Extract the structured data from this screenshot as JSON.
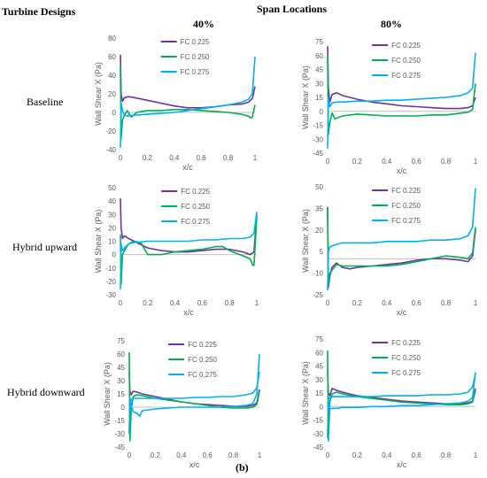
{
  "headers": {
    "turbine_designs": "Turbine Designs",
    "span_locations": "Span Locations",
    "col_40": "40%",
    "col_80": "80%"
  },
  "rows": [
    "Baseline",
    "Hybrid upward",
    "Hybrid downward"
  ],
  "caption": "(b)",
  "colors": {
    "FC 0.225": "#7030a0",
    "FC 0.250": "#00b050",
    "FC 0.275": "#00b0f0",
    "zero": "#bfbfbf"
  },
  "chart_data": [
    {
      "type": "line",
      "row": "Baseline",
      "span": "40%",
      "xlabel": "x/c",
      "ylabel": "Wall Shear X (Pa)",
      "xlim": [
        0,
        1
      ],
      "xticks": [
        0,
        0.2,
        0.4,
        0.6,
        0.8,
        1
      ],
      "ylim": [
        -40,
        80
      ],
      "yticks": [
        -40,
        -20,
        0,
        20,
        40,
        60,
        80
      ],
      "series": [
        {
          "name": "FC 0.225",
          "x": [
            0,
            0.005,
            0.015,
            0.03,
            0.06,
            0.1,
            0.2,
            0.3,
            0.4,
            0.5,
            0.6,
            0.7,
            0.8,
            0.9,
            0.95,
            0.98,
            1.0
          ],
          "y": [
            62,
            20,
            12,
            16,
            17,
            16,
            13,
            10,
            7,
            5,
            5,
            6,
            8,
            9,
            11,
            15,
            28
          ]
        },
        {
          "name": "FC 0.250",
          "x": [
            0,
            0.005,
            0.015,
            0.03,
            0.05,
            0.08,
            0.12,
            0.2,
            0.3,
            0.4,
            0.5,
            0.6,
            0.7,
            0.8,
            0.9,
            0.95,
            0.97,
            0.98,
            1.0
          ],
          "y": [
            50,
            -28,
            -8,
            -3,
            2,
            -5,
            0,
            2,
            2,
            3,
            3,
            2,
            1,
            0,
            -2,
            -4,
            -6,
            -5,
            8
          ]
        },
        {
          "name": "FC 0.275",
          "x": [
            0,
            0.005,
            0.015,
            0.03,
            0.06,
            0.1,
            0.2,
            0.3,
            0.4,
            0.5,
            0.6,
            0.7,
            0.8,
            0.9,
            0.95,
            0.98,
            1.0
          ],
          "y": [
            -38,
            10,
            2,
            -3,
            -4,
            -3,
            -2,
            -1,
            0,
            2,
            4,
            6,
            8,
            11,
            14,
            20,
            60
          ]
        }
      ]
    },
    {
      "type": "line",
      "row": "Baseline",
      "span": "80%",
      "xlabel": "x/c",
      "ylabel": "Wall Shear X (Pa)",
      "xlim": [
        0,
        1
      ],
      "xticks": [
        0,
        0.2,
        0.4,
        0.6,
        0.8,
        1
      ],
      "ylim": [
        -45,
        75
      ],
      "yticks": [
        -45,
        -30,
        -15,
        0,
        15,
        30,
        45,
        60,
        75
      ],
      "series": [
        {
          "name": "FC 0.225",
          "x": [
            0,
            0.005,
            0.015,
            0.03,
            0.06,
            0.1,
            0.2,
            0.3,
            0.4,
            0.5,
            0.6,
            0.7,
            0.8,
            0.9,
            0.95,
            0.98,
            1.0
          ],
          "y": [
            70,
            25,
            10,
            18,
            20,
            17,
            13,
            10,
            8,
            6,
            5,
            4,
            3,
            3,
            4,
            6,
            15
          ]
        },
        {
          "name": "FC 0.250",
          "x": [
            0,
            0.005,
            0.015,
            0.03,
            0.05,
            0.1,
            0.2,
            0.3,
            0.4,
            0.5,
            0.6,
            0.7,
            0.8,
            0.9,
            0.95,
            0.98,
            1.0
          ],
          "y": [
            60,
            -25,
            -12,
            -2,
            -8,
            -5,
            -3,
            -4,
            -5,
            -5,
            -5,
            -4,
            -4,
            -2,
            -1,
            2,
            30
          ]
        },
        {
          "name": "FC 0.275",
          "x": [
            0,
            0.005,
            0.015,
            0.03,
            0.06,
            0.1,
            0.2,
            0.3,
            0.4,
            0.5,
            0.6,
            0.7,
            0.8,
            0.9,
            0.95,
            0.98,
            1.0
          ],
          "y": [
            -40,
            15,
            5,
            9,
            10,
            10,
            11,
            11,
            12,
            12,
            13,
            14,
            15,
            17,
            20,
            25,
            63
          ]
        }
      ]
    },
    {
      "type": "line",
      "row": "Hybrid upward",
      "span": "40%",
      "xlabel": "x/c",
      "ylabel": "Wall Shear X (Pa)",
      "xlim": [
        0,
        1
      ],
      "xticks": [
        0,
        0.2,
        0.4,
        0.6,
        0.8,
        1
      ],
      "ylim": [
        -30,
        50
      ],
      "yticks": [
        -30,
        -20,
        -10,
        0,
        10,
        20,
        30,
        40,
        50
      ],
      "series": [
        {
          "name": "FC 0.225",
          "x": [
            0,
            0.005,
            0.015,
            0.03,
            0.06,
            0.1,
            0.2,
            0.3,
            0.4,
            0.5,
            0.6,
            0.7,
            0.8,
            0.9,
            0.95,
            0.98,
            1.0
          ],
          "y": [
            42,
            20,
            12,
            14,
            12,
            10,
            5,
            3,
            2,
            2,
            3,
            4,
            4,
            2,
            0,
            2,
            30
          ]
        },
        {
          "name": "FC 0.250",
          "x": [
            0,
            0.005,
            0.015,
            0.03,
            0.06,
            0.1,
            0.15,
            0.2,
            0.3,
            0.4,
            0.5,
            0.6,
            0.7,
            0.75,
            0.8,
            0.9,
            0.95,
            0.97,
            0.98,
            1.0
          ],
          "y": [
            15,
            -22,
            0,
            3,
            8,
            10,
            9,
            0,
            0,
            2,
            3,
            4,
            6,
            6,
            3,
            -1,
            -3,
            -8,
            -8,
            28
          ]
        },
        {
          "name": "FC 0.275",
          "x": [
            0,
            0.005,
            0.015,
            0.03,
            0.06,
            0.1,
            0.2,
            0.3,
            0.4,
            0.5,
            0.6,
            0.7,
            0.8,
            0.9,
            0.95,
            0.98,
            1.0
          ],
          "y": [
            -26,
            8,
            3,
            5,
            8,
            9,
            10,
            10,
            10,
            10,
            11,
            11,
            12,
            12,
            13,
            16,
            32
          ]
        }
      ]
    },
    {
      "type": "line",
      "row": "Hybrid upward",
      "span": "80%",
      "xlabel": "x/c",
      "ylabel": "Wall Shear X (Pa)",
      "xlim": [
        0,
        1
      ],
      "xticks": [
        0,
        0.2,
        0.4,
        0.6,
        0.8,
        1
      ],
      "ylim": [
        -25,
        50
      ],
      "yticks": [
        -25,
        -10,
        5,
        20,
        35,
        50
      ],
      "series": [
        {
          "name": "FC 0.225",
          "x": [
            0,
            0.005,
            0.015,
            0.03,
            0.06,
            0.1,
            0.15,
            0.2,
            0.3,
            0.4,
            0.5,
            0.6,
            0.7,
            0.8,
            0.9,
            0.95,
            0.98,
            1.0
          ],
          "y": [
            36,
            -20,
            -12,
            -6,
            -3,
            -6,
            -7,
            -6,
            -5,
            -4,
            -3,
            -1,
            0,
            0,
            -1,
            -2,
            2,
            20
          ]
        },
        {
          "name": "FC 0.250",
          "x": [
            0,
            0.005,
            0.015,
            0.03,
            0.06,
            0.1,
            0.15,
            0.2,
            0.3,
            0.4,
            0.5,
            0.6,
            0.7,
            0.8,
            0.9,
            0.95,
            0.98,
            1.0
          ],
          "y": [
            35,
            -18,
            -10,
            -8,
            -4,
            -5,
            -5,
            -5,
            -5,
            -5,
            -4,
            -2,
            0,
            2,
            1,
            0,
            4,
            22
          ]
        },
        {
          "name": "FC 0.275",
          "x": [
            0,
            0.005,
            0.015,
            0.03,
            0.06,
            0.1,
            0.2,
            0.3,
            0.4,
            0.5,
            0.6,
            0.7,
            0.8,
            0.9,
            0.95,
            0.98,
            1.0
          ],
          "y": [
            -22,
            5,
            8,
            9,
            10,
            11,
            11,
            11,
            12,
            12,
            12,
            13,
            13,
            14,
            16,
            22,
            49
          ]
        }
      ]
    },
    {
      "type": "line",
      "row": "Hybrid downward",
      "span": "40%",
      "xlabel": "x/c",
      "ylabel": "Wall Shear X (Pa)",
      "xlim": [
        0,
        1
      ],
      "xticks": [
        0,
        0.2,
        0.4,
        0.6,
        0.8,
        1
      ],
      "ylim": [
        -45,
        75
      ],
      "yticks": [
        -45,
        -30,
        -15,
        0,
        15,
        30,
        45,
        60,
        75
      ],
      "series": [
        {
          "name": "FC 0.225",
          "x": [
            0,
            0.005,
            0.015,
            0.03,
            0.06,
            0.1,
            0.2,
            0.3,
            0.4,
            0.5,
            0.6,
            0.7,
            0.8,
            0.9,
            0.95,
            0.98,
            1.0
          ],
          "y": [
            40,
            18,
            14,
            18,
            17,
            15,
            12,
            9,
            6,
            4,
            3,
            2,
            1,
            1,
            2,
            5,
            20
          ]
        },
        {
          "name": "FC 0.250",
          "x": [
            0,
            0.005,
            0.015,
            0.03,
            0.06,
            0.1,
            0.2,
            0.3,
            0.4,
            0.5,
            0.6,
            0.7,
            0.8,
            0.9,
            0.95,
            0.98,
            1.0
          ],
          "y": [
            62,
            -38,
            -2,
            12,
            14,
            13,
            10,
            8,
            6,
            4,
            2,
            0,
            -1,
            -1,
            0,
            3,
            18
          ]
        },
        {
          "name": "FC 0.275",
          "x": [
            0,
            0.005,
            0.015,
            0.03,
            0.06,
            0.08,
            0.1,
            0.2,
            0.3,
            0.4,
            0.5,
            0.6,
            0.7,
            0.8,
            0.9,
            0.95,
            0.98,
            1.0
          ],
          "y": [
            -30,
            10,
            2,
            -5,
            -7,
            -10,
            -4,
            -2,
            -1,
            0,
            0,
            0,
            0,
            1,
            2,
            4,
            15,
            60
          ]
        },
        {
          "name": "",
          "x": [
            0,
            0.005,
            0.015,
            0.03,
            0.06,
            0.1,
            0.2,
            0.3,
            0.4,
            0.5,
            0.6,
            0.7,
            0.8,
            0.9,
            0.95,
            0.98,
            1.0
          ],
          "y": [
            -30,
            10,
            8,
            10,
            10,
            10,
            10,
            10,
            10,
            11,
            11,
            12,
            12,
            14,
            16,
            22,
            40
          ]
        }
      ]
    },
    {
      "type": "line",
      "row": "Hybrid downward",
      "span": "80%",
      "xlabel": "x/c",
      "ylabel": "Wall Shear X (Pa)",
      "xlim": [
        0,
        1
      ],
      "xticks": [
        0,
        0.2,
        0.4,
        0.6,
        0.8,
        1
      ],
      "ylim": [
        -45,
        75
      ],
      "yticks": [
        -45,
        -30,
        -15,
        0,
        15,
        30,
        45,
        60,
        75
      ],
      "series": [
        {
          "name": "FC 0.225",
          "x": [
            0,
            0.005,
            0.015,
            0.03,
            0.06,
            0.1,
            0.2,
            0.3,
            0.4,
            0.5,
            0.6,
            0.7,
            0.8,
            0.9,
            0.95,
            0.98,
            1.0
          ],
          "y": [
            40,
            15,
            12,
            20,
            18,
            16,
            12,
            10,
            8,
            6,
            5,
            4,
            3,
            3,
            4,
            6,
            20
          ]
        },
        {
          "name": "FC 0.250",
          "x": [
            0,
            0.005,
            0.015,
            0.03,
            0.06,
            0.1,
            0.2,
            0.3,
            0.4,
            0.5,
            0.6,
            0.7,
            0.8,
            0.9,
            0.95,
            0.98,
            1.0
          ],
          "y": [
            62,
            -38,
            5,
            14,
            16,
            14,
            11,
            9,
            7,
            5,
            4,
            3,
            2,
            2,
            3,
            5,
            18
          ]
        },
        {
          "name": "FC 0.275",
          "x": [
            0,
            0.005,
            0.015,
            0.03,
            0.06,
            0.1,
            0.2,
            0.3,
            0.4,
            0.5,
            0.6,
            0.7,
            0.8,
            0.9,
            0.95,
            0.98,
            1.0
          ],
          "y": [
            -35,
            8,
            -3,
            -2,
            -2,
            -1,
            -1,
            0,
            0,
            1,
            1,
            2,
            3,
            4,
            6,
            10,
            38
          ]
        },
        {
          "name": "",
          "x": [
            0,
            0.005,
            0.015,
            0.03,
            0.06,
            0.1,
            0.2,
            0.3,
            0.4,
            0.5,
            0.6,
            0.7,
            0.8,
            0.9,
            0.95,
            0.98,
            1.0
          ],
          "y": [
            -35,
            8,
            10,
            11,
            11,
            11,
            11,
            11,
            12,
            12,
            12,
            13,
            13,
            14,
            16,
            22,
            36
          ]
        }
      ]
    }
  ]
}
